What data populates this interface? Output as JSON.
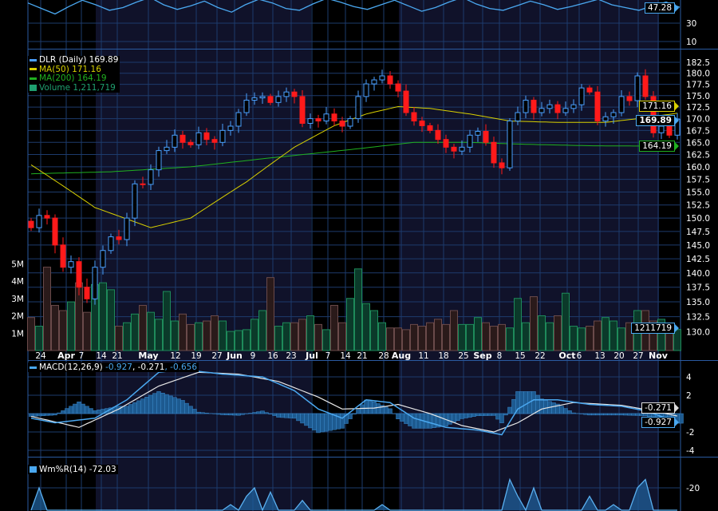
{
  "legend": {
    "price": "DLR (Daily) 169.89",
    "ma50": "MA(50) 171.16",
    "ma200": "MA(200) 164.19",
    "volume": "Volume 1,211,719",
    "macd_name": "MACD(12,26,9)",
    "macd_value": "-0.927",
    "signal_value": ", -0.271",
    "hist_value": ", -0.656",
    "wmr": "Wm%R(14) -72.03"
  },
  "tags": {
    "top": "47.28",
    "ma50": "171.16",
    "price": "169.89",
    "ma200": "164.19",
    "volume": "1211719",
    "signal": "-0.271",
    "macd": "-0.927"
  },
  "colors": {
    "up": "#4aa0ff",
    "down": "#ff1a1a",
    "ma50": "#d8d000",
    "ma200": "#20b020",
    "grid": "#1d3b6c",
    "macd": "#4aa8f0",
    "signal": "#e8e8e8"
  },
  "chart_data": {
    "type": "candlestick",
    "title": "DLR (Daily)",
    "y_scale": "log",
    "price_ticks": [
      "182.5",
      "180.0",
      "177.5",
      "175.0",
      "172.5",
      "170.0",
      "167.5",
      "165.0",
      "162.5",
      "160.0",
      "157.5",
      "155.0",
      "152.5",
      "150.0",
      "147.5",
      "145.0",
      "142.5",
      "140.0",
      "137.5",
      "135.0",
      "132.5",
      "130.0"
    ],
    "volume_ticks": [
      "1M",
      "2M",
      "3M",
      "4M",
      "5M"
    ],
    "macd_ticks": [
      "4",
      "2",
      "-2",
      "-4"
    ],
    "top_ticks": [
      "30",
      "10"
    ],
    "wmr_ticks": [
      "-20"
    ],
    "xticks": [
      {
        "label": "24",
        "i": 1.2,
        "major": false
      },
      {
        "label": "Apr",
        "i": 4.4,
        "major": true
      },
      {
        "label": "7",
        "i": 6.3,
        "major": false
      },
      {
        "label": "14",
        "i": 8.8,
        "major": false
      },
      {
        "label": "21",
        "i": 10.8,
        "major": false
      },
      {
        "label": "May",
        "i": 14.7,
        "major": true
      },
      {
        "label": "12",
        "i": 18.1,
        "major": false
      },
      {
        "label": "19",
        "i": 20.7,
        "major": false
      },
      {
        "label": "27",
        "i": 23.3,
        "major": false
      },
      {
        "label": "Jun",
        "i": 25.5,
        "major": true
      },
      {
        "label": "9",
        "i": 27.8,
        "major": false
      },
      {
        "label": "16",
        "i": 30.3,
        "major": false
      },
      {
        "label": "23",
        "i": 32.6,
        "major": false
      },
      {
        "label": "Jul",
        "i": 35.2,
        "major": true
      },
      {
        "label": "7",
        "i": 37.2,
        "major": false
      },
      {
        "label": "14",
        "i": 39.4,
        "major": false
      },
      {
        "label": "21",
        "i": 41.5,
        "major": false
      },
      {
        "label": "28",
        "i": 44.2,
        "major": false
      },
      {
        "label": "Aug",
        "i": 46.4,
        "major": true
      },
      {
        "label": "11",
        "i": 49.2,
        "major": false
      },
      {
        "label": "18",
        "i": 51.7,
        "major": false
      },
      {
        "label": "25",
        "i": 54.2,
        "major": false
      },
      {
        "label": "Sep",
        "i": 56.6,
        "major": true
      },
      {
        "label": "8",
        "i": 58.7,
        "major": false
      },
      {
        "label": "15",
        "i": 61.3,
        "major": false
      },
      {
        "label": "22",
        "i": 63.8,
        "major": false
      },
      {
        "label": "Oct",
        "i": 67.2,
        "major": true
      },
      {
        "label": "6",
        "i": 68.7,
        "major": false
      },
      {
        "label": "13",
        "i": 71.3,
        "major": false
      },
      {
        "label": "20",
        "i": 73.7,
        "major": false
      },
      {
        "label": "27",
        "i": 76.1,
        "major": false
      },
      {
        "label": "Nov",
        "i": 78.6,
        "major": true
      }
    ],
    "close": [
      148.2,
      150.5,
      150,
      145,
      141,
      142,
      137.5,
      135.5,
      141,
      144,
      146.5,
      146,
      150,
      156.6,
      156.5,
      159.4,
      163.3,
      164,
      166.5,
      165,
      164.5,
      167,
      165.6,
      165,
      167.5,
      168.4,
      171.3,
      174,
      174.5,
      174.8,
      173.5,
      174.8,
      175.8,
      174.8,
      169,
      170,
      169.5,
      171,
      169.5,
      168.4,
      170,
      174.8,
      177.6,
      178.5,
      179.4,
      177.6,
      176,
      171.3,
      169.5,
      168.5,
      167.5,
      165.6,
      164,
      163.2,
      164,
      166.5,
      167.3,
      165,
      160.8,
      159.8,
      169.5,
      171.3,
      174,
      171.3,
      172.2,
      173,
      171.3,
      172.2,
      173,
      176.7,
      175.8,
      169.5,
      170.4,
      171.3,
      174.8,
      173.9,
      179.4,
      174.8,
      167,
      168.4,
      166.5,
      169.89
    ],
    "volume_millions": [
      1.9,
      1.4,
      4.8,
      2.6,
      2.3,
      2.8,
      3.9,
      2.2,
      3.8,
      3.9,
      3.5,
      1.4,
      1.6,
      2.1,
      2.6,
      2.2,
      1.8,
      3.4,
      1.7,
      2.1,
      1.5,
      1.6,
      1.7,
      2.0,
      1.7,
      1.1,
      1.15,
      1.2,
      1.8,
      2.3,
      4.2,
      1.4,
      1.6,
      1.6,
      1.8,
      2.0,
      1.5,
      1.2,
      2.6,
      1.6,
      3.0,
      4.7,
      2.7,
      2.3,
      1.6,
      1.3,
      1.3,
      1.2,
      1.5,
      1.4,
      1.6,
      1.8,
      1.5,
      2.3,
      1.5,
      1.5,
      1.9,
      1.6,
      1.4,
      1.5,
      1.3,
      3.0,
      1.6,
      3.1,
      2.0,
      1.6,
      2.0,
      3.3,
      1.4,
      1.3,
      1.4,
      1.7,
      1.9,
      1.7,
      1.3,
      1.6,
      2.3,
      2.3,
      1.7,
      1.8,
      1.5,
      1.21
    ],
    "ma50": [
      [
        0,
        160.4
      ],
      [
        8,
        152
      ],
      [
        15,
        148.2
      ],
      [
        20,
        150
      ],
      [
        27,
        157
      ],
      [
        33,
        164
      ],
      [
        38,
        168.5
      ],
      [
        42,
        171
      ],
      [
        46,
        172.6
      ],
      [
        50,
        172.2
      ],
      [
        55,
        171
      ],
      [
        60,
        169.5
      ],
      [
        66,
        169.2
      ],
      [
        72,
        169.2
      ],
      [
        76,
        170
      ],
      [
        81,
        171.16
      ]
    ],
    "ma200": [
      [
        0,
        158.6
      ],
      [
        10,
        159
      ],
      [
        20,
        160
      ],
      [
        30,
        161.8
      ],
      [
        40,
        163.5
      ],
      [
        48,
        165
      ],
      [
        55,
        165
      ],
      [
        62,
        164.6
      ],
      [
        70,
        164.3
      ],
      [
        81,
        164.19
      ]
    ],
    "macd": [
      [
        0,
        -0.5
      ],
      [
        3,
        -1
      ],
      [
        8,
        -0.5
      ],
      [
        12,
        1.5
      ],
      [
        16,
        4.5
      ],
      [
        19,
        4.8
      ],
      [
        24,
        4.3
      ],
      [
        29,
        4
      ],
      [
        33,
        2.5
      ],
      [
        36,
        0.5
      ],
      [
        39,
        -0.5
      ],
      [
        42,
        1.5
      ],
      [
        45,
        1.2
      ],
      [
        48,
        -0.5
      ],
      [
        52,
        -1.5
      ],
      [
        56,
        -1.8
      ],
      [
        59,
        -2.3
      ],
      [
        61,
        0.5
      ],
      [
        63,
        1.5
      ],
      [
        66,
        1.5
      ],
      [
        70,
        1.0
      ],
      [
        74,
        0.8
      ],
      [
        77,
        0.3
      ],
      [
        81,
        -0.927
      ]
    ],
    "signal": [
      [
        0,
        -0.3
      ],
      [
        6,
        -1.5
      ],
      [
        11,
        0.5
      ],
      [
        16,
        3
      ],
      [
        21,
        4.5
      ],
      [
        26,
        4.3
      ],
      [
        31,
        3.5
      ],
      [
        36,
        1.8
      ],
      [
        39,
        0.5
      ],
      [
        43,
        0.6
      ],
      [
        46,
        1
      ],
      [
        50,
        0
      ],
      [
        54,
        -1.3
      ],
      [
        58,
        -2
      ],
      [
        61,
        -1
      ],
      [
        64,
        0.5
      ],
      [
        68,
        1.2
      ],
      [
        74,
        0.9
      ],
      [
        78,
        0.3
      ],
      [
        81,
        -0.271
      ]
    ],
    "wmr": [
      -60,
      -20,
      -90,
      -95,
      -85,
      -50,
      -90,
      -95,
      -98,
      -70,
      -60,
      -95,
      -98,
      -90,
      -85,
      -92,
      -95,
      -60,
      -85,
      -90,
      -70,
      -88,
      -95,
      -90,
      -75,
      -40,
      -80,
      -30,
      -20,
      -60,
      -25,
      -70,
      -90,
      -95,
      -35,
      -80,
      -90,
      -85,
      -90,
      -70,
      -95,
      -98,
      -90,
      -95,
      -40,
      -75,
      -90,
      -60,
      -85,
      -90,
      -95,
      -92,
      -88,
      -95,
      -98,
      -80,
      -90,
      -95,
      -98,
      -60,
      -10,
      -30,
      -70,
      -20,
      -50,
      -70,
      -90,
      -60,
      -85,
      -90,
      -30,
      -80,
      -90,
      -40,
      -70,
      -85,
      -20,
      -10,
      -60,
      -80,
      -90,
      -72.03
    ],
    "top_indicator": [
      52,
      46,
      40,
      48,
      55,
      50,
      44,
      47,
      53,
      58,
      50,
      45,
      49,
      54,
      47,
      42,
      50,
      56,
      52,
      46,
      44,
      51,
      57,
      53,
      48,
      45,
      50,
      55,
      49,
      43,
      47,
      53,
      58,
      51,
      46,
      44,
      49,
      54,
      50,
      45,
      48,
      52,
      56,
      50,
      47,
      44,
      49,
      53,
      47.28
    ]
  }
}
